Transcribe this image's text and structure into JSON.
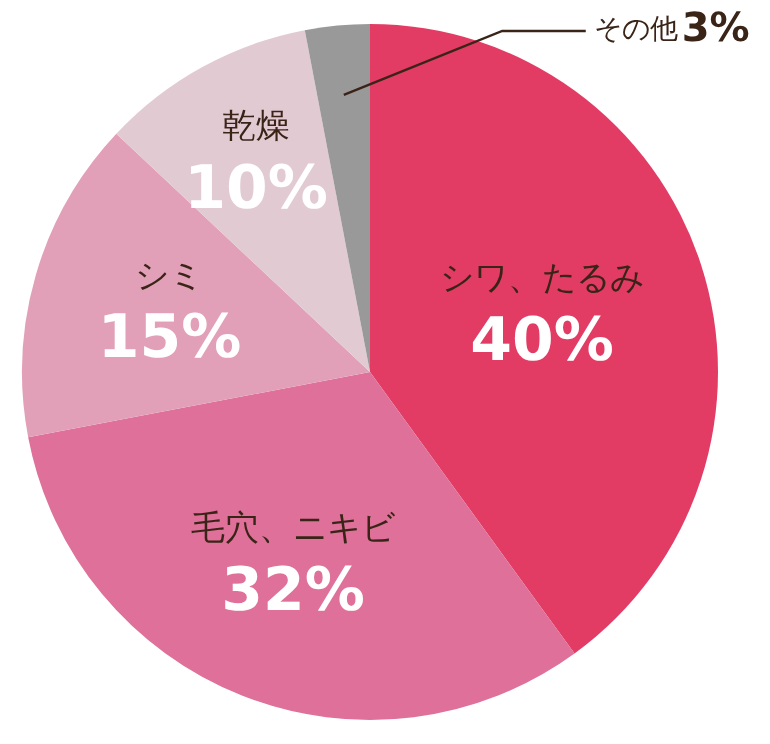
{
  "chart_data": {
    "type": "pie",
    "categories": [
      "シワ、たるみ",
      "毛穴、ニキビ",
      "シミ",
      "乾燥",
      "その他"
    ],
    "values": [
      40,
      32,
      15,
      10,
      3
    ],
    "colors": [
      "#e23c64",
      "#de7099",
      "#e2a0b8",
      "#e2cad3",
      "#999999"
    ],
    "value_labels": [
      "40%",
      "32%",
      "15%",
      "10%",
      "3%"
    ],
    "legend": false
  }
}
